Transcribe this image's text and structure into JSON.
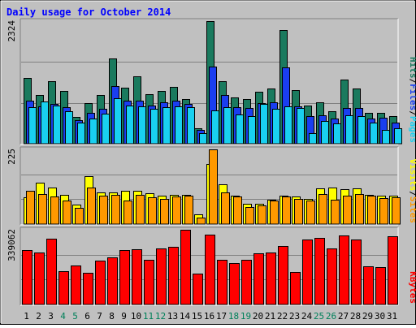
{
  "chart_data": [
    {
      "type": "bar",
      "title": "Daily usage for October 2014",
      "categories": [
        "1",
        "2",
        "3",
        "4",
        "5",
        "6",
        "7",
        "8",
        "9",
        "10",
        "11",
        "12",
        "13",
        "14",
        "15",
        "16",
        "17",
        "18",
        "19",
        "20",
        "21",
        "22",
        "23",
        "24",
        "25",
        "26",
        "27",
        "28",
        "29",
        "30",
        "31"
      ],
      "weekend_days": [
        "4",
        "5",
        "11",
        "12",
        "18",
        "19",
        "25",
        "26"
      ],
      "y_tick_label": "2324",
      "ylim": [
        0,
        2324
      ],
      "legend": [
        "Pages",
        "Files",
        "Hits"
      ],
      "series": [
        {
          "name": "Hits",
          "color": "#1a7a5e",
          "values": [
            1240,
            920,
            1180,
            1000,
            510,
            770,
            930,
            1620,
            1060,
            1270,
            940,
            1000,
            1080,
            850,
            290,
            2324,
            1180,
            880,
            850,
            990,
            1040,
            2160,
            1010,
            720,
            780,
            620,
            1220,
            1050,
            590,
            580,
            520
          ]
        },
        {
          "name": "Files",
          "color": "#1a3ef0",
          "values": [
            820,
            710,
            760,
            700,
            440,
            590,
            660,
            1100,
            820,
            820,
            720,
            780,
            820,
            750,
            260,
            1460,
            920,
            690,
            670,
            770,
            780,
            1450,
            710,
            520,
            540,
            470,
            680,
            680,
            480,
            500,
            400
          ]
        },
        {
          "name": "Pages",
          "color": "#19d0f0",
          "values": [
            690,
            800,
            720,
            620,
            400,
            480,
            570,
            860,
            720,
            710,
            660,
            690,
            710,
            690,
            200,
            630,
            700,
            560,
            530,
            750,
            660,
            710,
            670,
            200,
            430,
            390,
            540,
            530,
            400,
            260,
            290
          ]
        }
      ]
    },
    {
      "type": "bar",
      "categories": [
        "1",
        "2",
        "3",
        "4",
        "5",
        "6",
        "7",
        "8",
        "9",
        "10",
        "11",
        "12",
        "13",
        "14",
        "15",
        "16",
        "17",
        "18",
        "19",
        "20",
        "21",
        "22",
        "23",
        "24",
        "25",
        "26",
        "27",
        "28",
        "29",
        "30",
        "31"
      ],
      "y_tick_label": "225",
      "ylim": [
        0,
        225
      ],
      "legend": [
        "Sites",
        "Visits"
      ],
      "series": [
        {
          "name": "Visits",
          "color": "#ffff00",
          "values": [
            80,
            125,
            110,
            88,
            58,
            145,
            95,
            95,
            100,
            100,
            92,
            85,
            88,
            88,
            30,
            180,
            120,
            85,
            62,
            60,
            74,
            85,
            84,
            75,
            108,
            110,
            104,
            108,
            88,
            85,
            86
          ]
        },
        {
          "name": "Sites",
          "color": "#ff9900",
          "values": [
            100,
            90,
            84,
            72,
            50,
            110,
            85,
            88,
            72,
            88,
            80,
            75,
            84,
            85,
            20,
            225,
            95,
            82,
            52,
            56,
            72,
            84,
            75,
            72,
            90,
            74,
            86,
            90,
            86,
            78,
            80
          ]
        }
      ]
    },
    {
      "type": "bar",
      "categories": [
        "1",
        "2",
        "3",
        "4",
        "5",
        "6",
        "7",
        "8",
        "9",
        "10",
        "11",
        "12",
        "13",
        "14",
        "15",
        "16",
        "17",
        "18",
        "19",
        "20",
        "21",
        "22",
        "23",
        "24",
        "25",
        "26",
        "27",
        "28",
        "29",
        "30",
        "31"
      ],
      "y_tick_label": "339062",
      "ylim": [
        0,
        339062
      ],
      "legend": [
        "KBytes"
      ],
      "series": [
        {
          "name": "KBytes",
          "color": "#ff0000",
          "values": [
            246000,
            237000,
            300000,
            152000,
            177000,
            144000,
            200000,
            214000,
            248000,
            250000,
            204000,
            254000,
            260000,
            339062,
            139000,
            316000,
            204000,
            188000,
            204000,
            234000,
            236000,
            266000,
            149000,
            296000,
            303000,
            255000,
            315000,
            295000,
            172000,
            168000,
            311000
          ]
        }
      ]
    }
  ]
}
